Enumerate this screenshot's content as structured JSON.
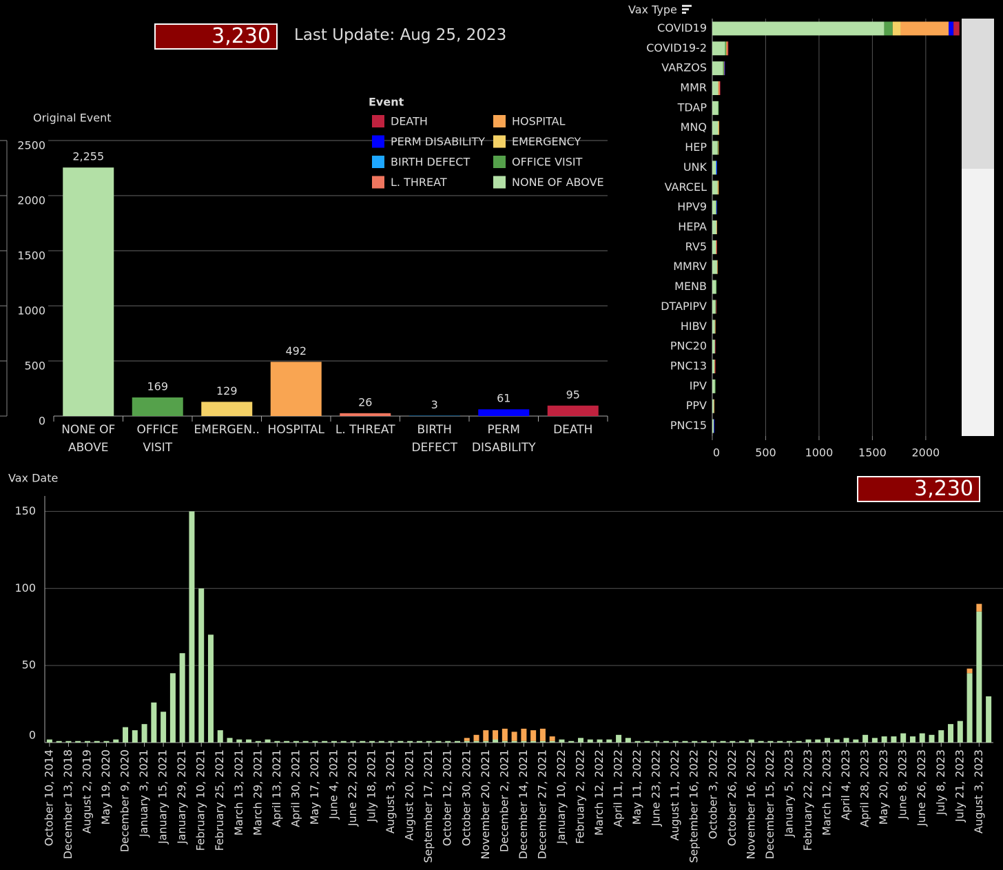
{
  "header": {
    "kpi": "3,230",
    "last_update": "Last Update: Aug 25, 2023"
  },
  "chart_data": [
    {
      "type": "bar",
      "title": "Original Event",
      "categories": [
        "NONE OF ABOVE",
        "OFFICE VISIT",
        "EMERGEN..",
        "HOSPITAL",
        "L. THREAT",
        "BIRTH DEFECT",
        "PERM DISABILITY",
        "DEATH"
      ],
      "values": [
        2255,
        169,
        129,
        492,
        26,
        3,
        61,
        95
      ],
      "value_labels": [
        "2,255",
        "169",
        "129",
        "492",
        "26",
        "3",
        "61",
        "95"
      ],
      "colors": [
        "#b3e0a6",
        "#55a14b",
        "#f4d166",
        "#f9a552",
        "#f0765f",
        "#1ea7ff",
        "#0000ff",
        "#c0223f"
      ],
      "ylim": [
        0,
        2500
      ],
      "yticks": [
        0,
        500,
        1000,
        1500,
        2000,
        2500
      ],
      "grid": true,
      "legend_title": "Event"
    },
    {
      "type": "bar",
      "orientation": "horizontal",
      "stacked": true,
      "title": "Vax Type",
      "categories": [
        "COVID19",
        "COVID19-2",
        "VARZOS",
        "MMR",
        "TDAP",
        "MNQ",
        "HEP",
        "UNK",
        "VARCEL",
        "HPV9",
        "HEPA",
        "RV5",
        "MMRV",
        "MENB",
        "DTAPIPV",
        "HIBV",
        "PNC20",
        "PNC13",
        "IPV",
        "PPV",
        "PNC15"
      ],
      "series": [
        {
          "name": "DEATH",
          "color": "#c0223f",
          "values": [
            55,
            5,
            0,
            4,
            0,
            0,
            0,
            0,
            0,
            0,
            0,
            5,
            0,
            0,
            5,
            0,
            5,
            5,
            0,
            0,
            0
          ]
        },
        {
          "name": "PERM DISABILITY",
          "color": "#0000ff",
          "values": [
            45,
            0,
            5,
            0,
            0,
            0,
            0,
            5,
            0,
            5,
            0,
            0,
            0,
            0,
            0,
            0,
            0,
            0,
            0,
            0,
            5
          ]
        },
        {
          "name": "BIRTH DEFECT",
          "color": "#1ea7ff",
          "values": [
            0,
            0,
            0,
            0,
            0,
            0,
            0,
            5,
            0,
            0,
            0,
            0,
            0,
            0,
            0,
            0,
            0,
            0,
            0,
            0,
            0
          ]
        },
        {
          "name": "L. THREAT",
          "color": "#f0765f",
          "values": [
            0,
            5,
            0,
            8,
            0,
            0,
            0,
            0,
            0,
            0,
            0,
            0,
            0,
            0,
            0,
            0,
            0,
            0,
            0,
            0,
            0
          ]
        },
        {
          "name": "HOSPITAL",
          "color": "#f9a552",
          "values": [
            450,
            10,
            5,
            8,
            0,
            5,
            5,
            0,
            5,
            0,
            5,
            5,
            5,
            0,
            0,
            5,
            0,
            5,
            0,
            5,
            0
          ]
        },
        {
          "name": "EMERGENCY",
          "color": "#f4d166",
          "values": [
            75,
            0,
            0,
            0,
            0,
            5,
            0,
            0,
            5,
            0,
            0,
            0,
            0,
            0,
            0,
            0,
            0,
            0,
            0,
            0,
            0
          ]
        },
        {
          "name": "OFFICE VISIT",
          "color": "#55a14b",
          "values": [
            80,
            10,
            8,
            0,
            5,
            0,
            5,
            0,
            0,
            5,
            0,
            0,
            0,
            5,
            5,
            0,
            0,
            0,
            5,
            0,
            0
          ]
        },
        {
          "name": "NONE OF ABOVE",
          "color": "#b3e0a6",
          "values": [
            1610,
            120,
            100,
            55,
            55,
            55,
            50,
            35,
            50,
            35,
            40,
            35,
            45,
            35,
            30,
            25,
            25,
            20,
            25,
            15,
            15
          ]
        }
      ],
      "xlim": [
        0,
        2330
      ],
      "xticks": [
        0,
        500,
        1000,
        1500,
        2000
      ],
      "grid": true
    },
    {
      "type": "bar",
      "stacked": true,
      "title": "Vax Date",
      "kpi": "3,230",
      "categories": [
        "October 10, 2014",
        null,
        "December 13, 2018",
        null,
        "August 2, 2019",
        null,
        "May 19, 2020",
        null,
        "December 9, 2020",
        null,
        "January 3, 2021",
        null,
        "January 15, 2021",
        null,
        "January 29, 2021",
        null,
        "February 10, 2021",
        null,
        "February 25, 2021",
        null,
        "March 13, 2021",
        null,
        "March 29, 2021",
        null,
        "April 13, 2021",
        null,
        "April 30, 2021",
        null,
        "May 17, 2021",
        null,
        "June 4, 2021",
        null,
        "June 22, 2021",
        null,
        "July 18, 2021",
        null,
        "August 3, 2021",
        null,
        "August 20, 2021",
        null,
        "September 17, 2021",
        null,
        "October 12, 2021",
        null,
        "October 30, 2021",
        null,
        "November 20, 2021",
        null,
        "December 2, 2021",
        null,
        "December 14, 2021",
        null,
        "December 27, 2021",
        null,
        "January 10, 2022",
        null,
        "February 2, 2022",
        null,
        "March 12, 2022",
        null,
        "April 11, 2022",
        null,
        "May 11, 2022",
        null,
        "June 23, 2022",
        null,
        "August 11, 2022",
        null,
        "September 16, 2022",
        null,
        "October 3, 2022",
        null,
        "October 26, 2022",
        null,
        "November 16, 2022",
        null,
        "December 15, 2022",
        null,
        "January 5, 2023",
        null,
        "February 22, 2023",
        null,
        "March 12, 2023",
        null,
        "April 4, 2023",
        null,
        "April 28, 2023",
        null,
        "May 20, 2023",
        null,
        "June 8, 2023",
        null,
        "June 26, 2023",
        null,
        "July 8, 2023",
        null,
        "July 21, 2023",
        null,
        "August 3, 2023",
        null
      ],
      "series": [
        {
          "color": "#b3e0a6",
          "values": [
            2,
            1,
            1,
            1,
            1,
            1,
            1,
            2,
            10,
            8,
            12,
            26,
            20,
            45,
            58,
            150,
            100,
            70,
            8,
            3,
            2,
            2,
            1,
            2,
            1,
            1,
            1,
            1,
            1,
            1,
            1,
            1,
            1,
            1,
            1,
            1,
            1,
            1,
            1,
            1,
            1,
            1,
            1,
            1,
            1,
            1,
            1,
            2,
            1,
            1,
            1,
            1,
            1,
            1,
            2,
            1,
            3,
            2,
            2,
            2,
            5,
            3,
            1,
            1,
            1,
            1,
            1,
            1,
            1,
            1,
            1,
            1,
            1,
            1,
            2,
            1,
            1,
            1,
            1,
            1,
            2,
            2,
            3,
            2,
            3,
            2,
            5,
            3,
            4,
            4,
            6,
            4,
            6,
            5,
            8,
            12,
            14,
            45,
            85,
            30
          ]
        },
        {
          "color": "#f9a552",
          "values": [
            0,
            0,
            0,
            0,
            0,
            0,
            0,
            0,
            0,
            0,
            0,
            0,
            0,
            0,
            0,
            0,
            0,
            0,
            0,
            0,
            0,
            0,
            0,
            0,
            0,
            0,
            0,
            0,
            0,
            0,
            0,
            0,
            0,
            0,
            0,
            0,
            0,
            0,
            0,
            0,
            0,
            0,
            0,
            0,
            2,
            4,
            7,
            6,
            8,
            6,
            8,
            7,
            8,
            3,
            0,
            0,
            0,
            0,
            0,
            0,
            0,
            0,
            0,
            0,
            0,
            0,
            0,
            0,
            0,
            0,
            0,
            0,
            0,
            0,
            0,
            0,
            0,
            0,
            0,
            0,
            0,
            0,
            0,
            0,
            0,
            0,
            0,
            0,
            0,
            0,
            0,
            0,
            0,
            0,
            0,
            0,
            0,
            3,
            5,
            0
          ]
        }
      ],
      "ylim": [
        0,
        160
      ],
      "yticks": [
        0,
        50,
        100,
        150
      ],
      "grid": true
    }
  ]
}
